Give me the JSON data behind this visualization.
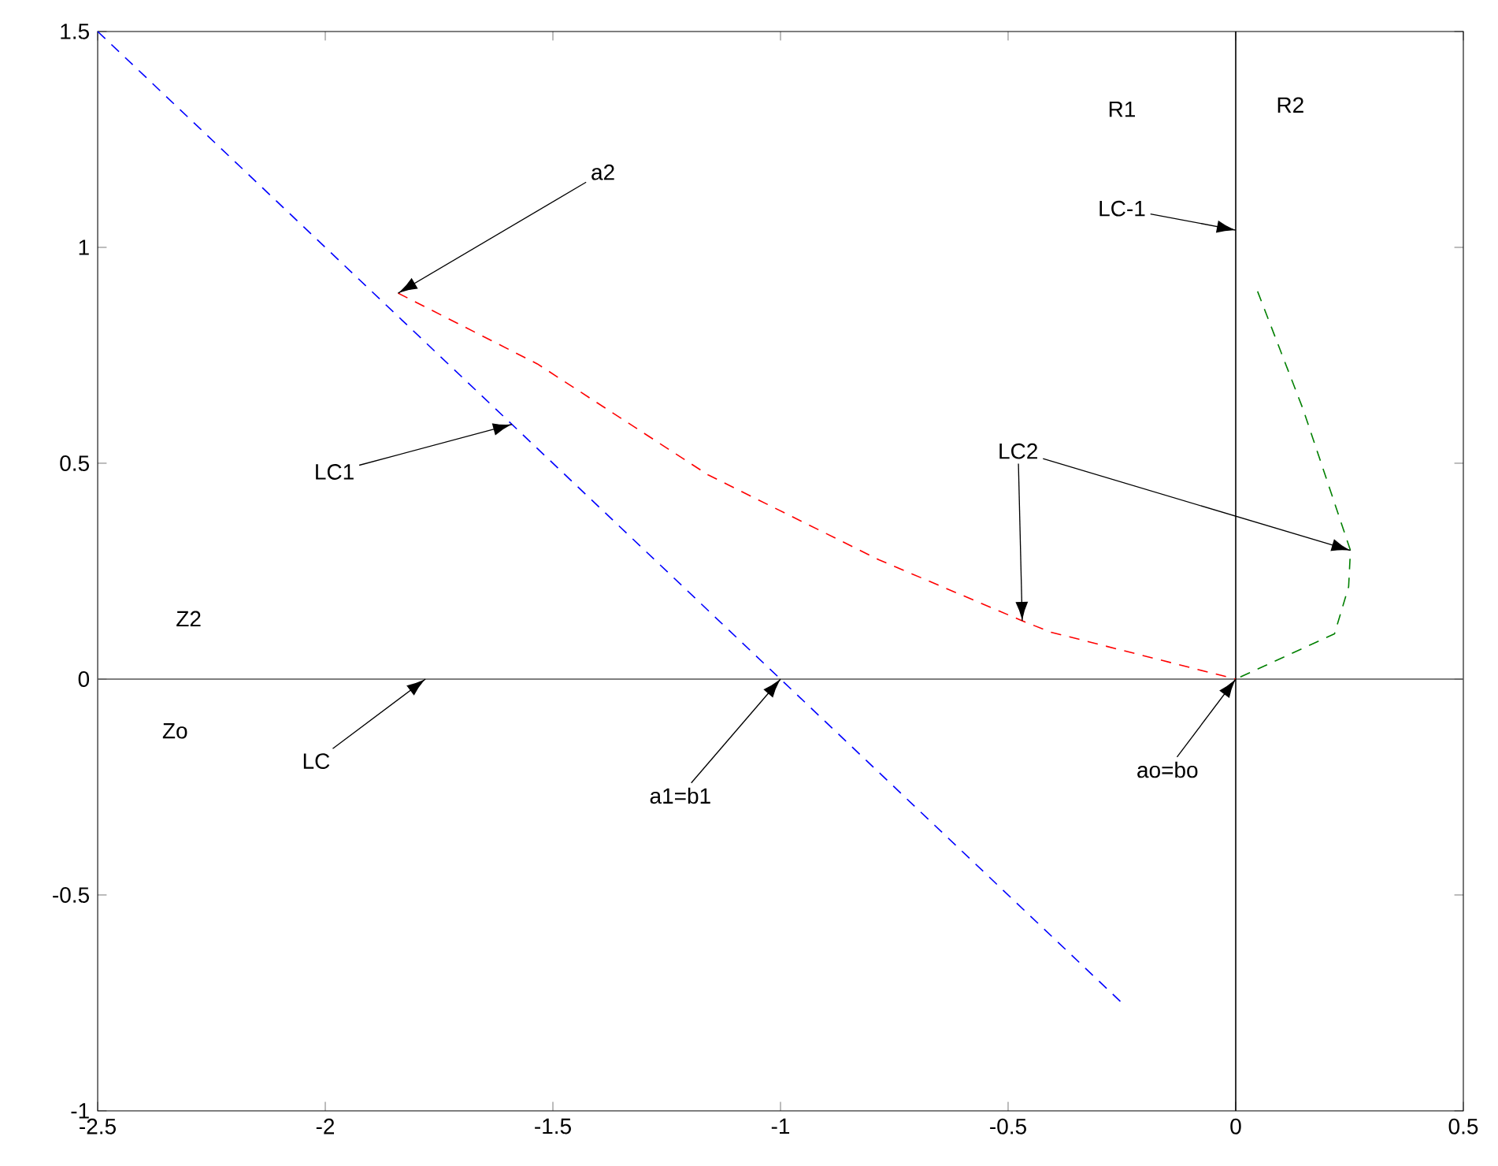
{
  "chart_data": {
    "type": "line",
    "xlim": [
      -2.5,
      0.5
    ],
    "ylim": [
      -1,
      1.5
    ],
    "xticks": [
      -2.5,
      -2,
      -1.5,
      -1,
      -0.5,
      0,
      0.5
    ],
    "yticks": [
      -1,
      -0.5,
      0,
      0.5,
      1,
      1.5
    ],
    "grid": false,
    "marker": "none",
    "line_style": "dashed",
    "series": [
      {
        "color": "#0000ff",
        "x": [
          -2.5,
          -0.25
        ],
        "values": [
          1.5,
          -0.75
        ]
      },
      {
        "color": "#ff0000",
        "x": [
          -1.84,
          -1.534,
          -1.159,
          -0.783,
          -0.469,
          -0.407,
          0
        ],
        "values": [
          0.894,
          0.73,
          0.473,
          0.276,
          0.135,
          0.109,
          0
        ]
      },
      {
        "color": "#008000",
        "x": [
          0.048,
          0.148,
          0.252,
          0.248,
          0.217,
          0
        ],
        "values": [
          0.898,
          0.625,
          0.298,
          0.214,
          0.105,
          0
        ]
      }
    ],
    "ref_lines": [
      {
        "axis": "y",
        "value": 0,
        "color": "#555555"
      },
      {
        "axis": "x",
        "value": 0,
        "color": "#000000"
      }
    ],
    "annotations": [
      {
        "text": "a2",
        "x": -1.84,
        "y": 0.894
      },
      {
        "text": "LC1",
        "x": -1.59,
        "y": 0.59
      },
      {
        "text": "LC",
        "x": -1.78,
        "y": 0
      },
      {
        "text": "a1=b1",
        "x": -1,
        "y": 0
      },
      {
        "text": "ao=bo",
        "x": 0,
        "y": 0
      },
      {
        "text": "LC-1",
        "x": 0,
        "y": 1.04
      },
      {
        "text": "LC2",
        "x": 0.252,
        "y": 0.298
      },
      "R1",
      "R2",
      "Z2",
      "Zo"
    ]
  }
}
